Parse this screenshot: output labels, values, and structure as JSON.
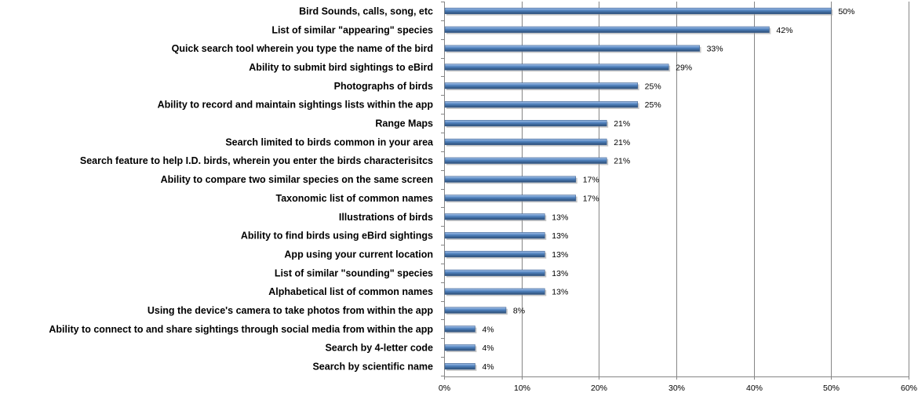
{
  "chart_data": {
    "type": "bar",
    "orientation": "horizontal",
    "title": "",
    "xlabel": "",
    "ylabel": "",
    "xlim": [
      0,
      60
    ],
    "x_ticks": [
      0,
      10,
      20,
      30,
      40,
      50,
      60
    ],
    "x_tick_labels": [
      "0%",
      "10%",
      "20%",
      "30%",
      "40%",
      "50%",
      "60%"
    ],
    "grid": "vertical",
    "legend": "none",
    "bar_color": "#4F81BD",
    "categories": [
      "Bird Sounds, calls, song, etc",
      "List of similar \"appearing\" species",
      "Quick search tool wherein you type the name of the bird",
      "Ability to submit bird sightings to eBird",
      "Photographs of birds",
      "Ability to record and maintain sightings lists within the app",
      "Range Maps",
      "Search limited to birds common in your area",
      "Search feature to help I.D. birds, wherein you enter the birds characterisitcs",
      "Ability to compare two similar species on the same screen",
      "Taxonomic list of common names",
      "Illustrations of birds",
      "Ability to find birds using eBird sightings",
      "App using your current location",
      "List of similar \"sounding\" species",
      "Alphabetical list of common names",
      "Using the device's camera to take photos from within the app",
      "Ability to connect to and share sightings through social media from within the app",
      "Search by 4-letter code",
      "Search by scientific name"
    ],
    "values": [
      50,
      42,
      33,
      29,
      25,
      25,
      21,
      21,
      21,
      17,
      17,
      13,
      13,
      13,
      13,
      13,
      8,
      4,
      4,
      4
    ],
    "data_labels": [
      "50%",
      "42%",
      "33%",
      "29%",
      "25%",
      "25%",
      "21%",
      "21%",
      "21%",
      "17%",
      "17%",
      "13%",
      "13%",
      "13%",
      "13%",
      "13%",
      "8%",
      "4%",
      "4%",
      "4%"
    ]
  }
}
